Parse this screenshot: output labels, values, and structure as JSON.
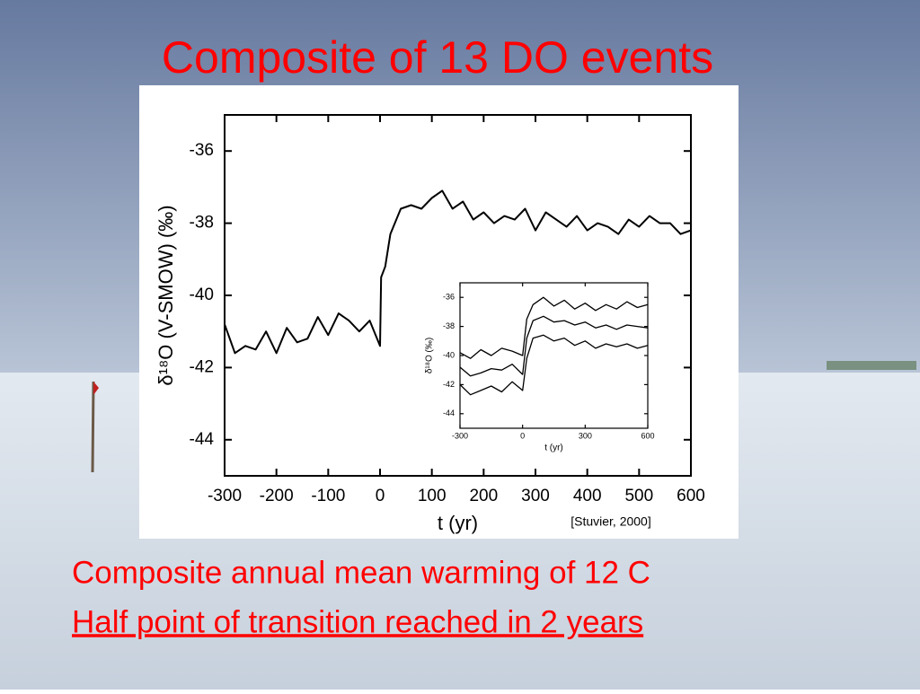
{
  "slide": {
    "title": "Composite of 13 DO events",
    "lines": [
      "Composite annual mean warming of 12 C",
      "Half point of transition reached in 2 years"
    ],
    "citation": "[Stuvier, 2000]"
  },
  "chart_data": [
    {
      "type": "line",
      "xlabel": "t (yr)",
      "ylabel": "δ¹⁸O (V-SMOW) (‰)",
      "x": [
        -300,
        -280,
        -260,
        -240,
        -220,
        -200,
        -180,
        -160,
        -140,
        -120,
        -100,
        -80,
        -60,
        -40,
        -20,
        0,
        2,
        10,
        20,
        40,
        60,
        80,
        100,
        120,
        140,
        160,
        180,
        200,
        220,
        240,
        260,
        280,
        300,
        320,
        340,
        360,
        380,
        400,
        420,
        440,
        460,
        480,
        500,
        520,
        540,
        560,
        580,
        600
      ],
      "series": [
        {
          "color": "#000000",
          "values": [
            -40.8,
            -41.6,
            -41.4,
            -41.5,
            -41.0,
            -41.6,
            -40.9,
            -41.3,
            -41.2,
            -40.6,
            -41.1,
            -40.5,
            -40.7,
            -41.0,
            -40.7,
            -41.4,
            -39.5,
            -39.2,
            -38.3,
            -37.6,
            -37.5,
            -37.6,
            -37.3,
            -37.1,
            -37.6,
            -37.4,
            -37.9,
            -37.7,
            -38.0,
            -37.8,
            -37.9,
            -37.6,
            -38.2,
            -37.7,
            -37.9,
            -38.1,
            -37.8,
            -38.2,
            -38.0,
            -38.1,
            -38.3,
            -37.9,
            -38.1,
            -37.8,
            -38.0,
            -38.0,
            -38.3,
            -38.2
          ]
        }
      ],
      "xlim": [
        -300,
        600
      ],
      "xticks": [
        -300,
        -200,
        -100,
        0,
        100,
        200,
        300,
        400,
        500,
        600
      ],
      "ylim": [
        -45,
        -35
      ],
      "yticks": [
        -36,
        -38,
        -40,
        -42,
        -44
      ]
    },
    {
      "type": "line",
      "xlabel": "t (yr)",
      "ylabel": "δ¹⁸O (‰)",
      "x": [
        -300,
        -250,
        -200,
        -150,
        -100,
        -50,
        0,
        20,
        50,
        100,
        150,
        200,
        250,
        300,
        350,
        400,
        450,
        500,
        550,
        600
      ],
      "series": [
        {
          "color": "#000000",
          "values": [
            -39.8,
            -40.2,
            -39.6,
            -40.0,
            -39.5,
            -39.7,
            -40.0,
            -37.5,
            -36.5,
            -36.0,
            -36.6,
            -36.2,
            -36.8,
            -36.4,
            -36.9,
            -36.5,
            -36.8,
            -36.3,
            -36.7,
            -36.5
          ]
        },
        {
          "color": "#000000",
          "values": [
            -40.8,
            -41.4,
            -41.2,
            -40.9,
            -41.0,
            -40.6,
            -41.3,
            -38.8,
            -37.6,
            -37.3,
            -37.7,
            -37.6,
            -37.9,
            -37.7,
            -38.1,
            -37.9,
            -38.2,
            -37.9,
            -38.0,
            -38.1
          ]
        },
        {
          "color": "#000000",
          "values": [
            -42.0,
            -42.7,
            -42.4,
            -42.1,
            -42.5,
            -41.8,
            -42.4,
            -40.2,
            -38.8,
            -38.6,
            -39.0,
            -38.8,
            -39.3,
            -39.0,
            -39.5,
            -39.2,
            -39.4,
            -39.2,
            -39.5,
            -39.3
          ]
        }
      ],
      "xlim": [
        -300,
        600
      ],
      "xticks": [
        -300,
        0,
        300,
        600
      ],
      "ylim": [
        -45,
        -35
      ],
      "yticks": [
        -36,
        -38,
        -40,
        -42,
        -44
      ]
    }
  ]
}
